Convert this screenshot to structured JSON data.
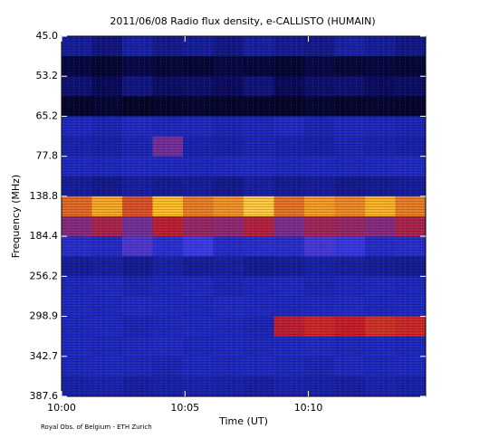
{
  "chart_data": {
    "type": "heatmap",
    "title": "2011/06/08  Radio flux density, e-CALLISTO (HUMAIN)",
    "x_label": "Time (UT)",
    "y_label": "Frequency (MHz)",
    "credit": "Royal Obs. of Belgium - ETH Zurich",
    "xlim": [
      0,
      14.75
    ],
    "xticks": [
      {
        "value": 0,
        "label": "10:00"
      },
      {
        "value": 5,
        "label": "10:05"
      },
      {
        "value": 10,
        "label": "10:10"
      }
    ],
    "ylim": [
      0,
      9
    ],
    "yticks": [
      {
        "value": 0,
        "label": "45.0"
      },
      {
        "value": 1,
        "label": "53.2"
      },
      {
        "value": 2,
        "label": "65.2"
      },
      {
        "value": 3,
        "label": "77.8"
      },
      {
        "value": 4,
        "label": "138.8"
      },
      {
        "value": 5,
        "label": "184.4"
      },
      {
        "value": 6,
        "label": "256.2"
      },
      {
        "value": 7,
        "label": "298.9"
      },
      {
        "value": 8,
        "label": "342.7"
      },
      {
        "value": 9,
        "label": "387.6"
      }
    ],
    "z": [
      [
        40,
        36,
        42,
        38,
        40,
        37,
        41,
        39,
        38,
        42,
        40,
        37
      ],
      [
        22,
        18,
        25,
        20,
        19,
        23,
        21,
        18,
        24,
        20,
        22,
        19
      ],
      [
        34,
        30,
        36,
        32,
        33,
        31,
        35,
        30,
        33,
        34,
        31,
        32
      ],
      [
        15,
        18,
        14,
        16,
        17,
        15,
        16,
        14,
        18,
        15,
        17,
        16
      ],
      [
        46,
        44,
        47,
        45,
        46,
        44,
        45,
        47,
        44,
        46,
        45,
        44
      ],
      [
        43,
        42,
        44,
        66,
        43,
        42,
        44,
        43,
        42,
        44,
        43,
        42
      ],
      [
        46,
        45,
        47,
        46,
        45,
        46,
        47,
        45,
        46,
        45,
        46,
        47
      ],
      [
        40,
        38,
        41,
        39,
        40,
        38,
        41,
        39,
        40,
        38,
        39,
        40
      ],
      [
        82,
        88,
        80,
        90,
        84,
        86,
        92,
        83,
        87,
        85,
        89,
        84
      ],
      [
        68,
        72,
        66,
        74,
        70,
        69,
        73,
        67,
        71,
        70,
        68,
        72
      ],
      [
        50,
        48,
        62,
        52,
        60,
        49,
        51,
        50,
        61,
        58,
        49,
        50
      ],
      [
        40,
        41,
        39,
        42,
        40,
        41,
        39,
        40,
        42,
        41,
        40,
        39
      ],
      [
        45,
        46,
        44,
        45,
        46,
        44,
        45,
        46,
        44,
        45,
        46,
        45
      ],
      [
        46,
        45,
        47,
        46,
        45,
        47,
        46,
        45,
        46,
        47,
        45,
        46
      ],
      [
        45,
        46,
        44,
        45,
        46,
        45,
        44,
        74,
        76,
        75,
        77,
        76
      ],
      [
        46,
        45,
        46,
        47,
        45,
        46,
        45,
        46,
        47,
        45,
        46,
        45
      ],
      [
        45,
        46,
        45,
        44,
        46,
        45,
        46,
        45,
        44,
        46,
        45,
        46
      ],
      [
        42,
        43,
        41,
        42,
        43,
        42,
        41,
        43,
        42,
        41,
        43,
        42
      ]
    ],
    "zlim": [
      0,
      100
    ]
  }
}
